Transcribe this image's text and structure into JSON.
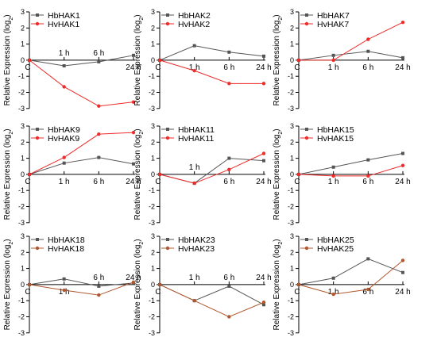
{
  "colors": {
    "axis": "#000000",
    "hb": "#555555",
    "hv_red": "#ef2b2b",
    "hv_brown": "#b0582d"
  },
  "chart_data": [
    {
      "type": "line",
      "categories": [
        "C",
        "1 h",
        "6 h",
        "24 h"
      ],
      "ylabel": "Relative Expression (log2)",
      "ylim": [
        -3,
        3
      ],
      "yticks": [
        -3,
        -2,
        -1,
        0,
        1,
        2,
        3
      ],
      "legend": "top-left",
      "series": [
        {
          "name": "HbHAK1",
          "color": "hb",
          "values": [
            0,
            -0.35,
            -0.1,
            0.3
          ]
        },
        {
          "name": "HvHAK1",
          "color": "hv_red",
          "values": [
            0,
            -1.65,
            -2.85,
            -2.6
          ]
        }
      ]
    },
    {
      "type": "line",
      "categories": [
        "C",
        "1 h",
        "6 h",
        "24 h"
      ],
      "ylabel": "Relative Expression (log2)",
      "ylim": [
        -3,
        3
      ],
      "yticks": [
        -3,
        -2,
        -1,
        0,
        1,
        2,
        3
      ],
      "legend": "top-left",
      "series": [
        {
          "name": "HbHAK2",
          "color": "hb",
          "values": [
            0,
            0.9,
            0.5,
            0.25
          ]
        },
        {
          "name": "HvHAK2",
          "color": "hv_red",
          "values": [
            0,
            -0.65,
            -1.45,
            -1.45
          ]
        }
      ]
    },
    {
      "type": "line",
      "categories": [
        "C",
        "1 h",
        "6 h",
        "24 h"
      ],
      "ylabel": "Relative Expression (log2)",
      "ylim": [
        -3,
        3
      ],
      "yticks": [
        -3,
        -2,
        -1,
        0,
        1,
        2,
        3
      ],
      "legend": "top-left",
      "series": [
        {
          "name": "HbHAK7",
          "color": "hb",
          "values": [
            0,
            0.3,
            0.55,
            0.15
          ]
        },
        {
          "name": "HvHAK7",
          "color": "hv_red",
          "values": [
            0,
            0,
            1.3,
            2.35
          ]
        }
      ]
    },
    {
      "type": "line",
      "categories": [
        "C",
        "1 h",
        "6 h",
        "24 h"
      ],
      "ylabel": "Relative Expression (log2)",
      "ylim": [
        -3,
        3
      ],
      "yticks": [
        -3,
        -2,
        -1,
        0,
        1,
        2,
        3
      ],
      "legend": "top-left",
      "series": [
        {
          "name": "HbHAK9",
          "color": "hb",
          "values": [
            0,
            0.7,
            1.05,
            0.65
          ]
        },
        {
          "name": "HvHAK9",
          "color": "hv_red",
          "values": [
            0,
            1.05,
            2.5,
            2.6
          ]
        }
      ]
    },
    {
      "type": "line",
      "categories": [
        "C",
        "1 h",
        "6 h",
        "24 h"
      ],
      "ylabel": "Relative Expression (log2)",
      "ylim": [
        -3,
        3
      ],
      "yticks": [
        -3,
        -2,
        -1,
        0,
        1,
        2,
        3
      ],
      "legend": "top-left",
      "series": [
        {
          "name": "HbHAK11",
          "color": "hb",
          "values": [
            0,
            -0.55,
            1.0,
            0.85
          ]
        },
        {
          "name": "HvHAK11",
          "color": "hv_red",
          "values": [
            0,
            -0.55,
            0.3,
            1.3
          ]
        }
      ]
    },
    {
      "type": "line",
      "categories": [
        "C",
        "1 h",
        "6 h",
        "24 h"
      ],
      "ylabel": "Relative Expression (log2)",
      "ylim": [
        -3,
        3
      ],
      "yticks": [
        -3,
        -2,
        -1,
        0,
        1,
        2,
        3
      ],
      "legend": "top-left",
      "series": [
        {
          "name": "HbHAK15",
          "color": "hb",
          "values": [
            0,
            0.45,
            0.9,
            1.3
          ]
        },
        {
          "name": "HvHAK15",
          "color": "hv_red",
          "values": [
            0,
            -0.1,
            -0.1,
            0.55
          ]
        }
      ]
    },
    {
      "type": "line",
      "categories": [
        "C",
        "1 h",
        "6 h",
        "24 h"
      ],
      "ylabel": "Relative Expression (log2)",
      "ylim": [
        -3,
        3
      ],
      "yticks": [
        -3,
        -2,
        -1,
        0,
        1,
        2,
        3
      ],
      "legend": "top-left",
      "series": [
        {
          "name": "HbHAK18",
          "color": "hb",
          "values": [
            0,
            0.35,
            -0.1,
            0.1
          ]
        },
        {
          "name": "HvHAK18",
          "color": "hv_brown",
          "values": [
            0,
            -0.35,
            -0.65,
            0.15
          ]
        }
      ]
    },
    {
      "type": "line",
      "categories": [
        "C",
        "1 h",
        "6 h",
        "24 h"
      ],
      "ylabel": "Relative Expression (log2)",
      "ylim": [
        -3,
        3
      ],
      "yticks": [
        -3,
        -2,
        -1,
        0,
        1,
        2,
        3
      ],
      "legend": "top-left",
      "series": [
        {
          "name": "HbHAK23",
          "color": "hb",
          "values": [
            0,
            -1.0,
            -0.1,
            -1.25
          ]
        },
        {
          "name": "HvHAK23",
          "color": "hv_brown",
          "values": [
            0,
            -1.0,
            -2.0,
            -1.1
          ]
        }
      ]
    },
    {
      "type": "line",
      "categories": [
        "C",
        "1 h",
        "6 h",
        "24 h"
      ],
      "ylabel": "Relative Expression (log2)",
      "ylim": [
        -3,
        3
      ],
      "yticks": [
        -3,
        -2,
        -1,
        0,
        1,
        2,
        3
      ],
      "legend": "top-left",
      "series": [
        {
          "name": "HbHAK25",
          "color": "hb",
          "values": [
            0,
            0.4,
            1.6,
            0.75
          ]
        },
        {
          "name": "HvHAK25",
          "color": "hv_brown",
          "values": [
            0,
            -0.6,
            -0.3,
            1.5
          ]
        }
      ]
    }
  ]
}
